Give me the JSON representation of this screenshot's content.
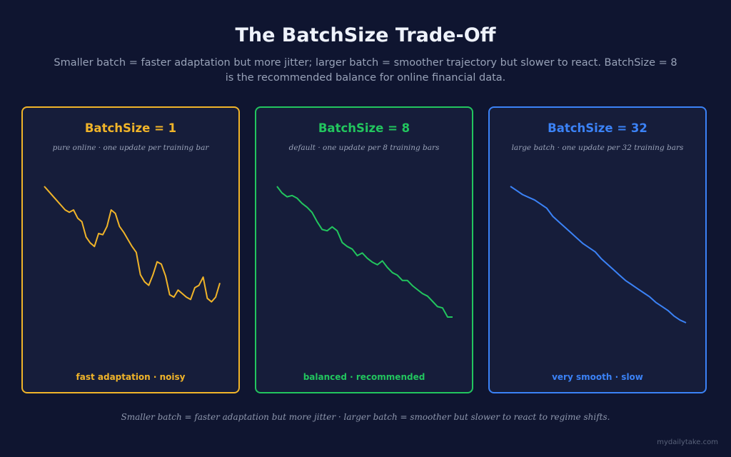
{
  "title": "The BatchSize Trade-Off",
  "subtitle": "Smaller batch = faster adaptation but more jitter; larger batch = smoother trajectory but slower to react. BatchSize = 8 is the recommended balance for online financial data.",
  "panels": [
    {
      "title": "BatchSize = 1",
      "subtitle": "pure online · one update per training bar",
      "footer": "fast adaptation · noisy",
      "color": "#f0b429",
      "series": [
        0,
        4,
        8,
        12,
        16,
        20,
        22,
        20,
        27,
        30,
        43,
        48,
        51,
        40,
        41,
        34,
        20,
        23,
        34,
        39,
        45,
        51,
        56,
        75,
        81,
        84,
        75,
        64,
        66,
        76,
        92,
        94,
        88,
        91,
        94,
        96,
        86,
        84,
        77,
        95,
        98,
        94,
        82
      ]
    },
    {
      "title": "BatchSize = 8",
      "subtitle": "default · one update per 8 training bars",
      "footer": "balanced · recommended",
      "color": "#22c55e",
      "series": [
        0,
        5,
        8,
        7,
        9,
        13,
        16,
        20,
        27,
        33,
        34,
        31,
        34,
        43,
        46,
        48,
        53,
        51,
        55,
        58,
        60,
        57,
        62,
        66,
        68,
        72,
        72,
        76,
        79,
        82,
        84,
        88,
        92,
        93,
        100,
        100
      ]
    },
    {
      "title": "BatchSize = 32",
      "subtitle": "large batch · one update per 32 training bars",
      "footer": "very smooth · slow",
      "color": "#3b82f6",
      "series": [
        0,
        3,
        6,
        8,
        10,
        13,
        16,
        22,
        26,
        30,
        34,
        38,
        42,
        45,
        48,
        53,
        57,
        61,
        65,
        69,
        72,
        75,
        78,
        81,
        85,
        88,
        91,
        95,
        98,
        100
      ]
    }
  ],
  "footer": "Smaller batch = faster adaptation but more jitter · larger batch = smoother but slower to react to regime shifts.",
  "watermark": "mydailytake.com"
}
